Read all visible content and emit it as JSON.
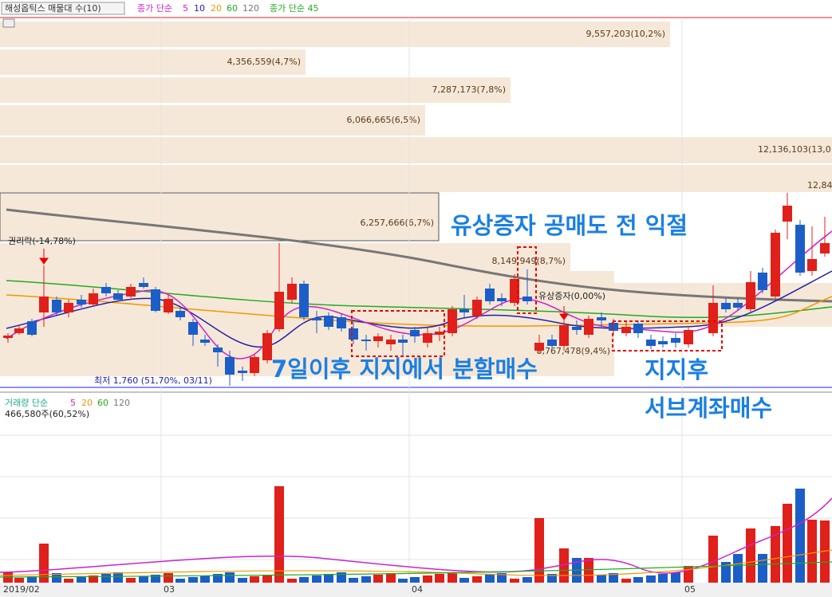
{
  "toolbar": {
    "indicator": "해성옵틱스 매물대 수(10)",
    "ma_name": "종가 단순",
    "ma_periods": [
      "5",
      "10",
      "20",
      "60",
      "120"
    ],
    "ma_extra": "종가 단순 45"
  },
  "price_panel": {
    "volume_profile": [
      "9,557,203(10,2%)",
      "4,356,559(4,7%)",
      "7,287,173(7,8%)",
      "6,066,665(6,5%)",
      "12,136,103(13,0",
      "12,84",
      "6,257,666(6,7%)",
      "8,149,949(8,7%)",
      "8,767,478(9,4%)"
    ],
    "annotations": {
      "rights_off": "권리락(-14,78%)",
      "rights_offering": "유상증자(0,00%)",
      "low": "최저 1,760 (51,70%, 03/11)"
    },
    "overlay_text": [
      "유상증자 공매도 전 익절",
      "7일이후 지지에서 분할매수",
      "지지후",
      "서브계좌매수"
    ]
  },
  "volume_panel": {
    "name": "거래량 단순",
    "periods": [
      "5",
      "20",
      "60",
      "120"
    ],
    "current": "466,580주(60,52%)"
  },
  "x_axis": [
    "2019/02",
    "03",
    "04",
    "05"
  ]
}
